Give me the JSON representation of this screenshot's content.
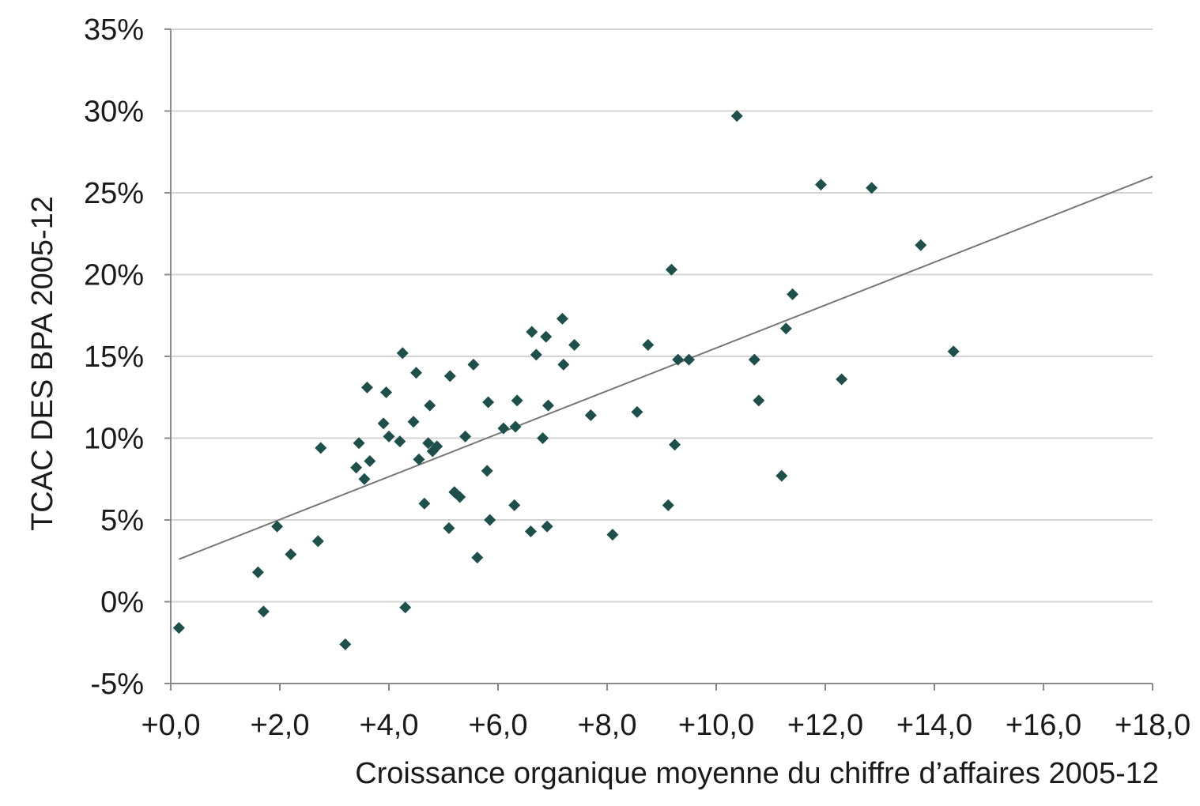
{
  "chart_data": {
    "type": "scatter",
    "xlabel": "Croissance organique moyenne du chiffre d’affaires 2005-12",
    "ylabel": "TCAC DES BPA 2005-12",
    "xlim": [
      0,
      18
    ],
    "ylim": [
      -5,
      35
    ],
    "x_ticks": [
      "+0,0",
      "+2,0",
      "+4,0",
      "+6,0",
      "+8,0",
      "+10,0",
      "+12,0",
      "+14,0",
      "+16,0",
      "+18,0"
    ],
    "y_ticks": [
      "-5%",
      "0%",
      "5%",
      "10%",
      "15%",
      "20%",
      "25%",
      "30%",
      "35%"
    ],
    "grid": "horizontal",
    "marker_color": "#1f4f4a",
    "trendline_color": "#777777",
    "trendline": {
      "x": [
        0.15,
        18.0
      ],
      "y": [
        2.6,
        26.0
      ]
    },
    "series": [
      {
        "points": [
          [
            0.15,
            -1.6
          ],
          [
            1.6,
            1.8
          ],
          [
            1.7,
            -0.6
          ],
          [
            1.95,
            4.6
          ],
          [
            2.2,
            2.9
          ],
          [
            2.7,
            3.7
          ],
          [
            2.75,
            9.4
          ],
          [
            3.2,
            -2.6
          ],
          [
            3.4,
            8.2
          ],
          [
            3.45,
            9.7
          ],
          [
            3.55,
            7.5
          ],
          [
            3.6,
            13.1
          ],
          [
            3.65,
            8.6
          ],
          [
            3.9,
            10.9
          ],
          [
            3.95,
            12.8
          ],
          [
            4.0,
            10.1
          ],
          [
            4.2,
            9.8
          ],
          [
            4.25,
            15.2
          ],
          [
            4.3,
            -0.35
          ],
          [
            4.45,
            11.0
          ],
          [
            4.5,
            14.0
          ],
          [
            4.55,
            8.7
          ],
          [
            4.65,
            6.0
          ],
          [
            4.72,
            9.7
          ],
          [
            4.75,
            12.0
          ],
          [
            4.8,
            9.2
          ],
          [
            4.88,
            9.5
          ],
          [
            5.1,
            4.5
          ],
          [
            5.12,
            13.8
          ],
          [
            5.2,
            6.7
          ],
          [
            5.3,
            6.4
          ],
          [
            5.4,
            10.1
          ],
          [
            5.55,
            14.5
          ],
          [
            5.62,
            2.7
          ],
          [
            5.8,
            8.0
          ],
          [
            5.82,
            12.2
          ],
          [
            5.85,
            5.0
          ],
          [
            6.1,
            10.6
          ],
          [
            6.3,
            5.9
          ],
          [
            6.32,
            10.7
          ],
          [
            6.35,
            12.3
          ],
          [
            6.6,
            4.3
          ],
          [
            6.62,
            16.5
          ],
          [
            6.7,
            15.1
          ],
          [
            6.82,
            10.0
          ],
          [
            6.88,
            16.2
          ],
          [
            6.9,
            4.6
          ],
          [
            6.92,
            12.0
          ],
          [
            7.18,
            17.3
          ],
          [
            7.2,
            14.5
          ],
          [
            7.4,
            15.7
          ],
          [
            7.7,
            11.4
          ],
          [
            8.1,
            4.1
          ],
          [
            8.55,
            11.6
          ],
          [
            8.75,
            15.7
          ],
          [
            9.12,
            5.9
          ],
          [
            9.18,
            20.3
          ],
          [
            9.24,
            9.6
          ],
          [
            9.3,
            14.8
          ],
          [
            9.5,
            14.8
          ],
          [
            10.38,
            29.7
          ],
          [
            10.7,
            14.8
          ],
          [
            10.78,
            12.3
          ],
          [
            11.2,
            7.7
          ],
          [
            11.28,
            16.7
          ],
          [
            11.4,
            18.8
          ],
          [
            11.92,
            25.5
          ],
          [
            12.3,
            13.6
          ],
          [
            12.85,
            25.3
          ],
          [
            13.75,
            21.8
          ],
          [
            14.35,
            15.3
          ]
        ]
      }
    ]
  }
}
